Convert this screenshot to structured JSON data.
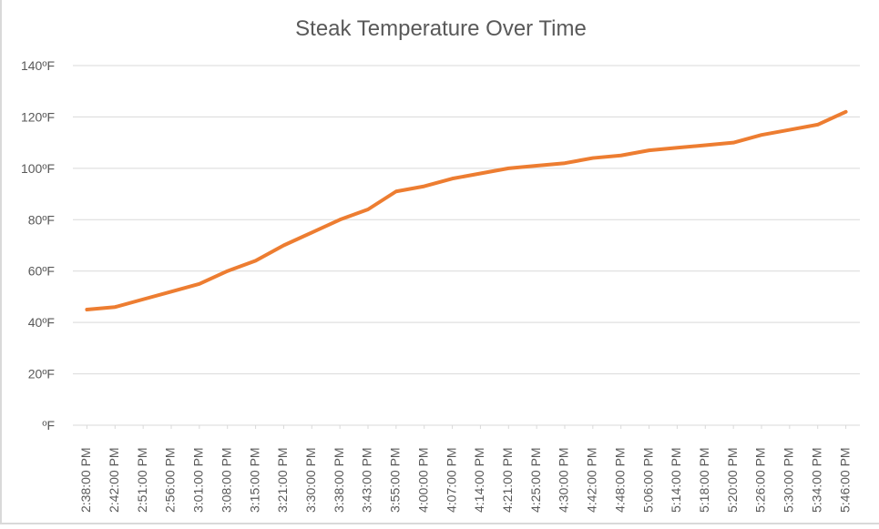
{
  "chart_data": {
    "type": "line",
    "title": "Steak Temperature Over Time",
    "xlabel": "",
    "ylabel": "",
    "ylim": [
      0,
      140
    ],
    "yticks": [
      {
        "value": 140,
        "label": "140ºF"
      },
      {
        "value": 120,
        "label": "120ºF"
      },
      {
        "value": 100,
        "label": "100ºF"
      },
      {
        "value": 80,
        "label": "80ºF"
      },
      {
        "value": 60,
        "label": "60ºF"
      },
      {
        "value": 40,
        "label": "40ºF"
      },
      {
        "value": 20,
        "label": "20ºF"
      },
      {
        "value": 0,
        "label": "ºF"
      }
    ],
    "grid": true,
    "legend": "none",
    "colors": {
      "line": "#ed7d31",
      "grid": "#d9d9d9",
      "text": "#595959"
    },
    "categories": [
      "2:38:00 PM",
      "2:42:00 PM",
      "2:51:00 PM",
      "2:56:00 PM",
      "3:01:00 PM",
      "3:08:00 PM",
      "3:15:00 PM",
      "3:21:00 PM",
      "3:30:00 PM",
      "3:38:00 PM",
      "3:43:00 PM",
      "3:55:00 PM",
      "4:00:00 PM",
      "4:07:00 PM",
      "4:14:00 PM",
      "4:21:00 PM",
      "4:25:00 PM",
      "4:30:00 PM",
      "4:42:00 PM",
      "4:48:00 PM",
      "5:06:00 PM",
      "5:14:00 PM",
      "5:18:00 PM",
      "5:20:00 PM",
      "5:26:00 PM",
      "5:30:00 PM",
      "5:34:00 PM",
      "5:46:00 PM"
    ],
    "series": [
      {
        "values": [
          45,
          46,
          49,
          52,
          55,
          60,
          64,
          70,
          75,
          80,
          84,
          91,
          93,
          96,
          98,
          100,
          101,
          102,
          104,
          105,
          107,
          108,
          109,
          110,
          113,
          115,
          117,
          122
        ]
      }
    ]
  }
}
